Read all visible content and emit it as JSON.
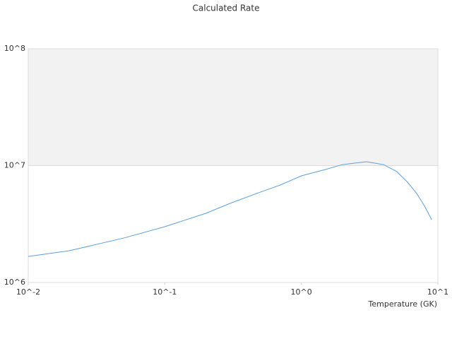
{
  "chart_data": {
    "type": "line",
    "title": "Calculated Rate",
    "x_label": "Temperature (GK)",
    "x": [
      0.01,
      0.02,
      0.05,
      0.1,
      0.2,
      0.3,
      0.5,
      0.7,
      1.0,
      1.5,
      2,
      3,
      4,
      5,
      6,
      7,
      8,
      9
    ],
    "series": [
      {
        "color": "#5aa0e0",
        "values": [
          1670000,
          1870000,
          2400000,
          3000000,
          3910000,
          4750000,
          5930000,
          6820000,
          8170000,
          9260000,
          10200000,
          10800000,
          10200000,
          8890000,
          7210000,
          5770000,
          4490000,
          3450000
        ]
      }
    ],
    "xlim": [
      0.01,
      10
    ],
    "ylim": [
      1000000,
      100000000
    ],
    "xticks": [
      {
        "value": 0.01,
        "label": "10^-2"
      },
      {
        "value": 0.1,
        "label": "10^-1"
      },
      {
        "value": 1,
        "label": "10^0"
      },
      {
        "value": 10,
        "label": "10^1"
      }
    ],
    "yticks": [
      {
        "value": 1000000,
        "label": "10^6"
      },
      {
        "value": 10000000,
        "label": "10^7"
      },
      {
        "value": 100000000,
        "label": "10^8"
      }
    ],
    "x_log": true,
    "y_log": true,
    "grid": true
  }
}
